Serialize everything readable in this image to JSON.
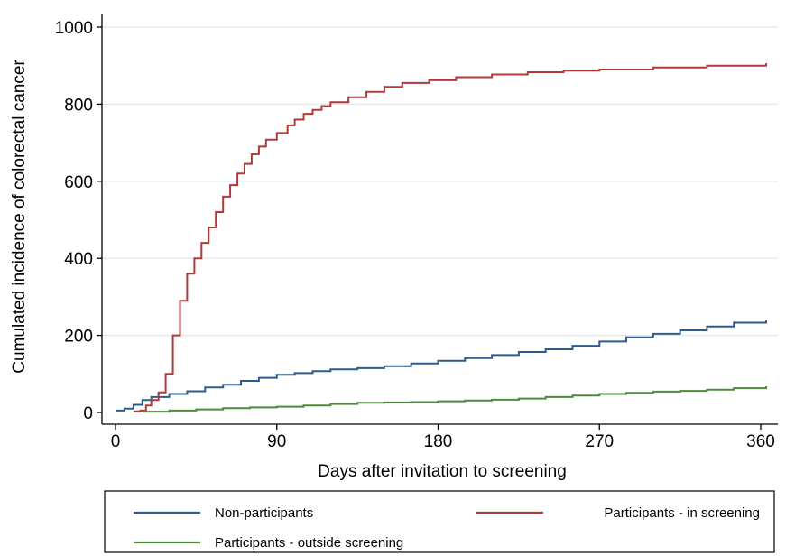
{
  "chart_data": {
    "type": "line",
    "title": "",
    "xlabel": "Days after invitation to screening",
    "ylabel": "Cumulated incidence of colorectal cancer",
    "xlim": [
      0,
      365
    ],
    "ylim": [
      0,
      1000
    ],
    "xticks": [
      0,
      90,
      180,
      270,
      360
    ],
    "yticks": [
      0,
      200,
      400,
      600,
      800,
      1000
    ],
    "grid": "horizontal",
    "legend_position": "bottom",
    "series": [
      {
        "name": "Non-participants",
        "color": "#2f5b8c",
        "points": [
          [
            0,
            5
          ],
          [
            5,
            10
          ],
          [
            10,
            20
          ],
          [
            15,
            32
          ],
          [
            20,
            40
          ],
          [
            30,
            48
          ],
          [
            40,
            55
          ],
          [
            50,
            65
          ],
          [
            60,
            72
          ],
          [
            70,
            82
          ],
          [
            80,
            90
          ],
          [
            90,
            98
          ],
          [
            100,
            102
          ],
          [
            110,
            107
          ],
          [
            120,
            112
          ],
          [
            135,
            115
          ],
          [
            150,
            120
          ],
          [
            165,
            127
          ],
          [
            180,
            134
          ],
          [
            195,
            141
          ],
          [
            210,
            149
          ],
          [
            225,
            157
          ],
          [
            240,
            164
          ],
          [
            255,
            173
          ],
          [
            270,
            184
          ],
          [
            285,
            195
          ],
          [
            300,
            204
          ],
          [
            315,
            213
          ],
          [
            330,
            223
          ],
          [
            345,
            233
          ],
          [
            363,
            239
          ]
        ]
      },
      {
        "name": "Participants - in screening",
        "color": "#b03a3a",
        "points": [
          [
            10,
            3
          ],
          [
            14,
            5
          ],
          [
            17,
            18
          ],
          [
            20,
            32
          ],
          [
            24,
            52
          ],
          [
            28,
            100
          ],
          [
            32,
            200
          ],
          [
            36,
            290
          ],
          [
            40,
            360
          ],
          [
            44,
            400
          ],
          [
            48,
            440
          ],
          [
            52,
            480
          ],
          [
            56,
            520
          ],
          [
            60,
            560
          ],
          [
            64,
            590
          ],
          [
            68,
            620
          ],
          [
            72,
            645
          ],
          [
            76,
            670
          ],
          [
            80,
            690
          ],
          [
            84,
            708
          ],
          [
            90,
            725
          ],
          [
            96,
            745
          ],
          [
            100,
            760
          ],
          [
            105,
            775
          ],
          [
            110,
            785
          ],
          [
            115,
            795
          ],
          [
            120,
            805
          ],
          [
            130,
            818
          ],
          [
            140,
            832
          ],
          [
            150,
            845
          ],
          [
            160,
            855
          ],
          [
            175,
            862
          ],
          [
            190,
            870
          ],
          [
            210,
            877
          ],
          [
            230,
            883
          ],
          [
            250,
            887
          ],
          [
            270,
            890
          ],
          [
            300,
            895
          ],
          [
            330,
            900
          ],
          [
            363,
            906
          ]
        ]
      },
      {
        "name": "Participants - outside screening",
        "color": "#4e8a3e",
        "points": [
          [
            15,
            2
          ],
          [
            30,
            5
          ],
          [
            45,
            8
          ],
          [
            60,
            11
          ],
          [
            75,
            13
          ],
          [
            90,
            15
          ],
          [
            105,
            18
          ],
          [
            120,
            22
          ],
          [
            135,
            25
          ],
          [
            150,
            26
          ],
          [
            165,
            27
          ],
          [
            180,
            29
          ],
          [
            195,
            31
          ],
          [
            210,
            33
          ],
          [
            225,
            36
          ],
          [
            240,
            40
          ],
          [
            255,
            44
          ],
          [
            270,
            48
          ],
          [
            285,
            51
          ],
          [
            300,
            54
          ],
          [
            315,
            56
          ],
          [
            330,
            59
          ],
          [
            345,
            63
          ],
          [
            363,
            68
          ]
        ]
      }
    ]
  }
}
